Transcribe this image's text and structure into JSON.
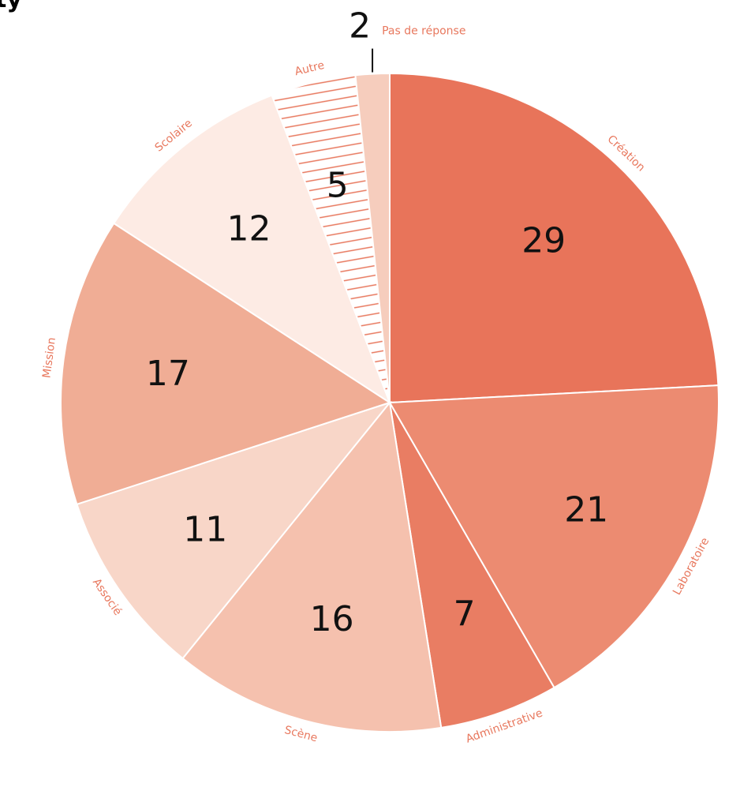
{
  "heading_fragment": "ty",
  "colors": {
    "label": "#e8785e",
    "value": "#111111",
    "separator": "#ffffff",
    "hatch": "#e8785e"
  },
  "chart_data": {
    "type": "pie",
    "title": "",
    "start": "12 o'clock",
    "direction": "clockwise",
    "slices": [
      {
        "label": "Création",
        "value": 29,
        "color": "#e8745a",
        "pattern": "solid"
      },
      {
        "label": "Laboratoire",
        "value": 21,
        "color": "#ec8b71",
        "pattern": "solid"
      },
      {
        "label": "Administrative",
        "value": 7,
        "color": "#e97d63",
        "pattern": "solid"
      },
      {
        "label": "Scène",
        "value": 16,
        "color": "#f5c1ae",
        "pattern": "solid"
      },
      {
        "label": "Associé",
        "value": 11,
        "color": "#f8d6c8",
        "pattern": "solid"
      },
      {
        "label": "Mission",
        "value": 17,
        "color": "#f0ad95",
        "pattern": "solid"
      },
      {
        "label": "Scolaire",
        "value": 12,
        "color": "#fdebe4",
        "pattern": "solid"
      },
      {
        "label": "Autre",
        "value": 5,
        "color": "#ffffff",
        "pattern": "hatched"
      },
      {
        "label": "Pas de réponse",
        "value": 2,
        "color": "#f6cdbd",
        "pattern": "solid"
      }
    ]
  }
}
